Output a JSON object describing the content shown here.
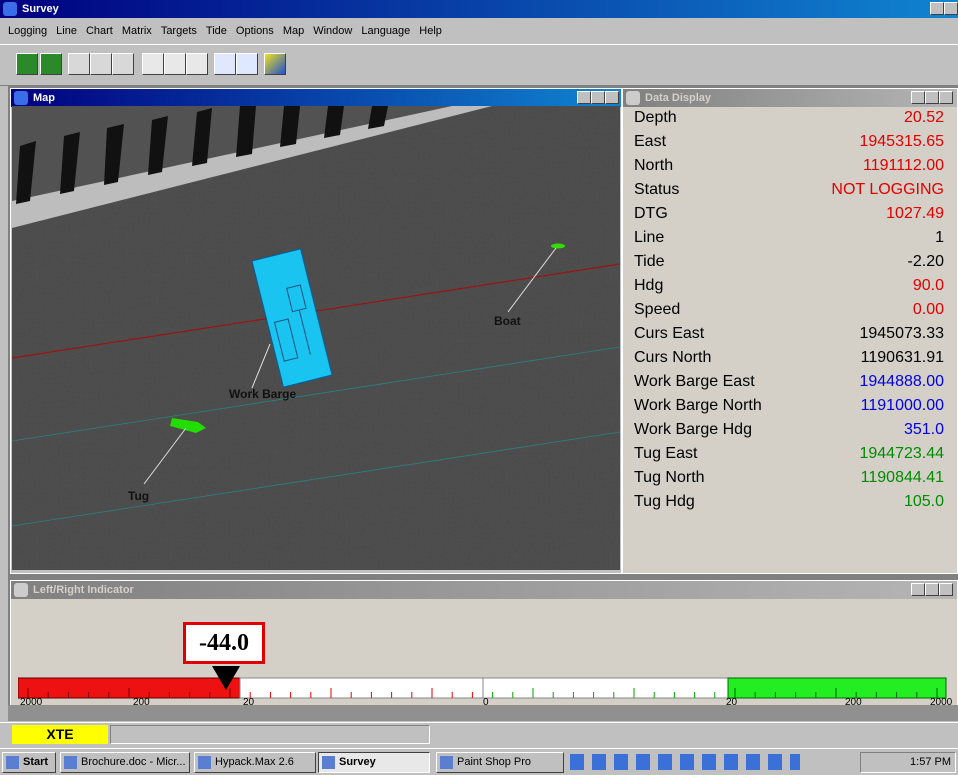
{
  "window": {
    "title": "Survey"
  },
  "menu": [
    "Logging",
    "Line",
    "Chart",
    "Matrix",
    "Targets",
    "Tide",
    "Options",
    "Map",
    "Window",
    "Language",
    "Help"
  ],
  "map": {
    "title": "Map",
    "labels": {
      "boat": "Boat",
      "barge": "Work Barge",
      "tug": "Tug"
    }
  },
  "data_display": {
    "title": "Data Display",
    "rows": [
      {
        "label": "Depth",
        "value": "20.52",
        "color": "#e00000"
      },
      {
        "label": "East",
        "value": "1945315.65",
        "color": "#e00000"
      },
      {
        "label": "North",
        "value": "1191112.00",
        "color": "#e00000"
      },
      {
        "label": "Status",
        "value": "NOT LOGGING",
        "color": "#e00000"
      },
      {
        "label": "DTG",
        "value": "1027.49",
        "color": "#e00000"
      },
      {
        "label": "Line",
        "value": "1",
        "color": "#000000"
      },
      {
        "label": "Tide",
        "value": "-2.20",
        "color": "#000000"
      },
      {
        "label": "Hdg",
        "value": "90.0",
        "color": "#e00000"
      },
      {
        "label": "Speed",
        "value": "0.00",
        "color": "#e00000"
      },
      {
        "label": "Curs East",
        "value": "1945073.33",
        "color": "#000000"
      },
      {
        "label": "Curs North",
        "value": "1190631.91",
        "color": "#000000"
      },
      {
        "label": "Work Barge East",
        "value": "1944888.00",
        "color": "#0000e0"
      },
      {
        "label": "Work Barge North",
        "value": "1191000.00",
        "color": "#0000e0"
      },
      {
        "label": "Work Barge Hdg",
        "value": "351.0",
        "color": "#0000e0"
      },
      {
        "label": "Tug East",
        "value": "1944723.44",
        "color": "#008c00"
      },
      {
        "label": "Tug North",
        "value": "1190844.41",
        "color": "#008c00"
      },
      {
        "label": "Tug Hdg",
        "value": "105.0",
        "color": "#008c00"
      }
    ]
  },
  "indicator": {
    "title": "Left/Right Indicator",
    "value": "-44.0",
    "scale": [
      "2000",
      "200",
      "20",
      "0",
      "20",
      "200",
      "2000"
    ]
  },
  "status": {
    "xte": "XTE"
  },
  "taskbar": {
    "start": "Start",
    "buttons": [
      "Brochure.doc - Micr...",
      "Hypack.Max 2.6",
      "Survey",
      "Paint Shop Pro"
    ],
    "clock": "1:57 PM"
  }
}
